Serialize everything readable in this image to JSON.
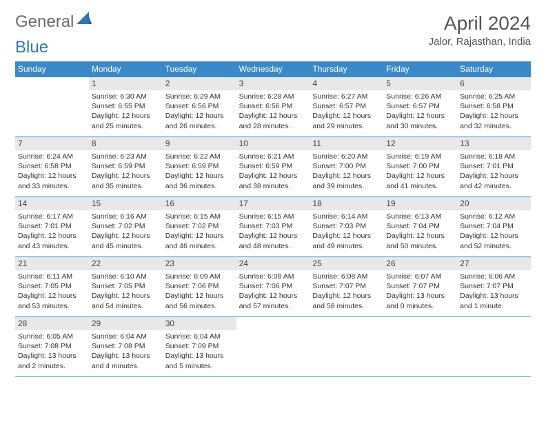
{
  "logo": {
    "text1": "General",
    "text2": "Blue"
  },
  "title": "April 2024",
  "location": "Jalor, Rajasthan, India",
  "colors": {
    "header_bar": "#3a8ac9",
    "day_number_bg": "#e8e8e8",
    "logo_gray": "#6b6b6b",
    "logo_blue": "#2e75b6"
  },
  "weekdays": [
    "Sunday",
    "Monday",
    "Tuesday",
    "Wednesday",
    "Thursday",
    "Friday",
    "Saturday"
  ],
  "weeks": [
    [
      null,
      {
        "n": "1",
        "sr": "Sunrise: 6:30 AM",
        "ss": "Sunset: 6:55 PM",
        "dl": "Daylight: 12 hours and 25 minutes."
      },
      {
        "n": "2",
        "sr": "Sunrise: 6:29 AM",
        "ss": "Sunset: 6:56 PM",
        "dl": "Daylight: 12 hours and 26 minutes."
      },
      {
        "n": "3",
        "sr": "Sunrise: 6:28 AM",
        "ss": "Sunset: 6:56 PM",
        "dl": "Daylight: 12 hours and 28 minutes."
      },
      {
        "n": "4",
        "sr": "Sunrise: 6:27 AM",
        "ss": "Sunset: 6:57 PM",
        "dl": "Daylight: 12 hours and 29 minutes."
      },
      {
        "n": "5",
        "sr": "Sunrise: 6:26 AM",
        "ss": "Sunset: 6:57 PM",
        "dl": "Daylight: 12 hours and 30 minutes."
      },
      {
        "n": "6",
        "sr": "Sunrise: 6:25 AM",
        "ss": "Sunset: 6:58 PM",
        "dl": "Daylight: 12 hours and 32 minutes."
      }
    ],
    [
      {
        "n": "7",
        "sr": "Sunrise: 6:24 AM",
        "ss": "Sunset: 6:58 PM",
        "dl": "Daylight: 12 hours and 33 minutes."
      },
      {
        "n": "8",
        "sr": "Sunrise: 6:23 AM",
        "ss": "Sunset: 6:59 PM",
        "dl": "Daylight: 12 hours and 35 minutes."
      },
      {
        "n": "9",
        "sr": "Sunrise: 6:22 AM",
        "ss": "Sunset: 6:59 PM",
        "dl": "Daylight: 12 hours and 36 minutes."
      },
      {
        "n": "10",
        "sr": "Sunrise: 6:21 AM",
        "ss": "Sunset: 6:59 PM",
        "dl": "Daylight: 12 hours and 38 minutes."
      },
      {
        "n": "11",
        "sr": "Sunrise: 6:20 AM",
        "ss": "Sunset: 7:00 PM",
        "dl": "Daylight: 12 hours and 39 minutes."
      },
      {
        "n": "12",
        "sr": "Sunrise: 6:19 AM",
        "ss": "Sunset: 7:00 PM",
        "dl": "Daylight: 12 hours and 41 minutes."
      },
      {
        "n": "13",
        "sr": "Sunrise: 6:18 AM",
        "ss": "Sunset: 7:01 PM",
        "dl": "Daylight: 12 hours and 42 minutes."
      }
    ],
    [
      {
        "n": "14",
        "sr": "Sunrise: 6:17 AM",
        "ss": "Sunset: 7:01 PM",
        "dl": "Daylight: 12 hours and 43 minutes."
      },
      {
        "n": "15",
        "sr": "Sunrise: 6:16 AM",
        "ss": "Sunset: 7:02 PM",
        "dl": "Daylight: 12 hours and 45 minutes."
      },
      {
        "n": "16",
        "sr": "Sunrise: 6:15 AM",
        "ss": "Sunset: 7:02 PM",
        "dl": "Daylight: 12 hours and 46 minutes."
      },
      {
        "n": "17",
        "sr": "Sunrise: 6:15 AM",
        "ss": "Sunset: 7:03 PM",
        "dl": "Daylight: 12 hours and 48 minutes."
      },
      {
        "n": "18",
        "sr": "Sunrise: 6:14 AM",
        "ss": "Sunset: 7:03 PM",
        "dl": "Daylight: 12 hours and 49 minutes."
      },
      {
        "n": "19",
        "sr": "Sunrise: 6:13 AM",
        "ss": "Sunset: 7:04 PM",
        "dl": "Daylight: 12 hours and 50 minutes."
      },
      {
        "n": "20",
        "sr": "Sunrise: 6:12 AM",
        "ss": "Sunset: 7:04 PM",
        "dl": "Daylight: 12 hours and 52 minutes."
      }
    ],
    [
      {
        "n": "21",
        "sr": "Sunrise: 6:11 AM",
        "ss": "Sunset: 7:05 PM",
        "dl": "Daylight: 12 hours and 53 minutes."
      },
      {
        "n": "22",
        "sr": "Sunrise: 6:10 AM",
        "ss": "Sunset: 7:05 PM",
        "dl": "Daylight: 12 hours and 54 minutes."
      },
      {
        "n": "23",
        "sr": "Sunrise: 6:09 AM",
        "ss": "Sunset: 7:06 PM",
        "dl": "Daylight: 12 hours and 56 minutes."
      },
      {
        "n": "24",
        "sr": "Sunrise: 6:08 AM",
        "ss": "Sunset: 7:06 PM",
        "dl": "Daylight: 12 hours and 57 minutes."
      },
      {
        "n": "25",
        "sr": "Sunrise: 6:08 AM",
        "ss": "Sunset: 7:07 PM",
        "dl": "Daylight: 12 hours and 58 minutes."
      },
      {
        "n": "26",
        "sr": "Sunrise: 6:07 AM",
        "ss": "Sunset: 7:07 PM",
        "dl": "Daylight: 13 hours and 0 minutes."
      },
      {
        "n": "27",
        "sr": "Sunrise: 6:06 AM",
        "ss": "Sunset: 7:07 PM",
        "dl": "Daylight: 13 hours and 1 minute."
      }
    ],
    [
      {
        "n": "28",
        "sr": "Sunrise: 6:05 AM",
        "ss": "Sunset: 7:08 PM",
        "dl": "Daylight: 13 hours and 2 minutes."
      },
      {
        "n": "29",
        "sr": "Sunrise: 6:04 AM",
        "ss": "Sunset: 7:08 PM",
        "dl": "Daylight: 13 hours and 4 minutes."
      },
      {
        "n": "30",
        "sr": "Sunrise: 6:04 AM",
        "ss": "Sunset: 7:09 PM",
        "dl": "Daylight: 13 hours and 5 minutes."
      },
      null,
      null,
      null,
      null
    ]
  ]
}
